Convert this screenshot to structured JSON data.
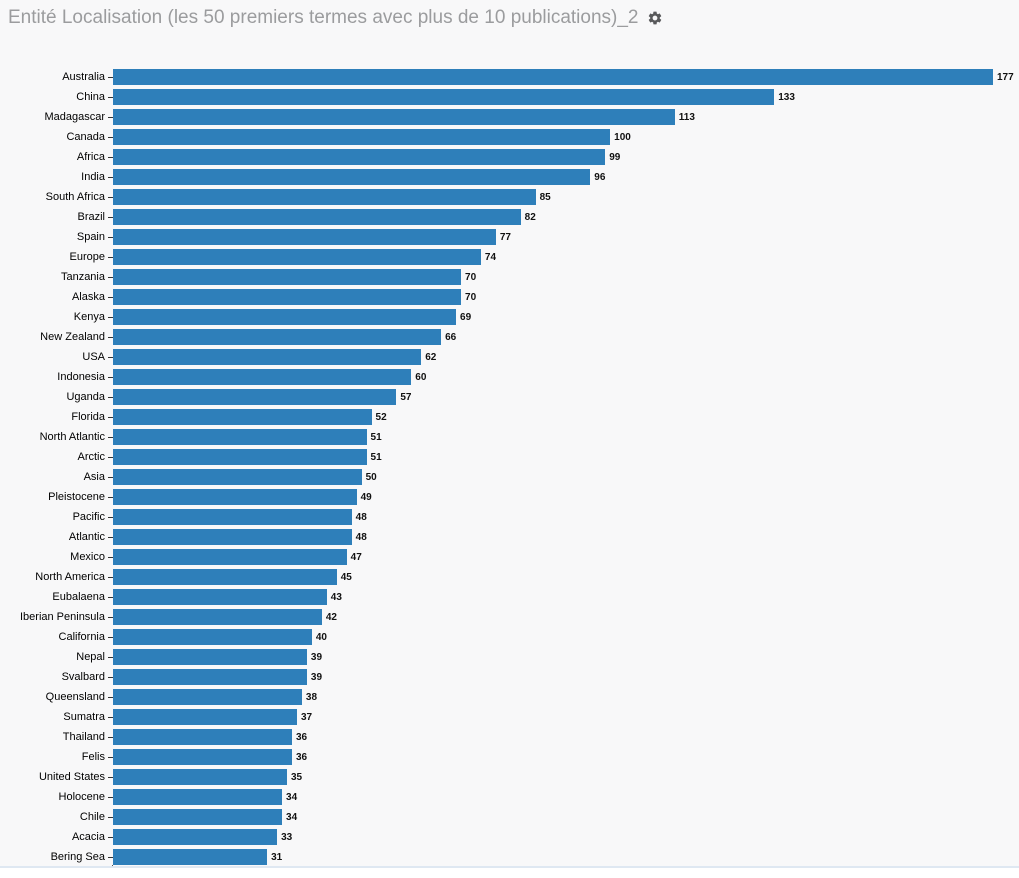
{
  "header": {
    "title": "Entité Localisation (les 50 premiers termes avec plus de 10 publications)_2",
    "gear_icon": "settings-gear"
  },
  "colors": {
    "bar": "#2e7fba",
    "panel_background": "#f8f8f9",
    "title_text": "#9b9c9e",
    "gear_icon": "#58595b",
    "value_label": "#111111",
    "category_label": "#000000",
    "bottom_divider": "#dfe8f2"
  },
  "chart_data": {
    "type": "bar",
    "orientation": "horizontal",
    "title": "Entité Localisation (les 50 premiers termes avec plus de 10 publications)_2",
    "xlabel": "",
    "ylabel": "",
    "xlim": [
      0,
      177
    ],
    "grid": false,
    "legend": false,
    "value_labels": true,
    "categories": [
      "Australia",
      "China",
      "Madagascar",
      "Canada",
      "Africa",
      "India",
      "South Africa",
      "Brazil",
      "Spain",
      "Europe",
      "Tanzania",
      "Alaska",
      "Kenya",
      "New Zealand",
      "USA",
      "Indonesia",
      "Uganda",
      "Florida",
      "North Atlantic",
      "Arctic",
      "Asia",
      "Pleistocene",
      "Pacific",
      "Atlantic",
      "Mexico",
      "North America",
      "Eubalaena",
      "Iberian Peninsula",
      "California",
      "Nepal",
      "Svalbard",
      "Queensland",
      "Sumatra",
      "Thailand",
      "Felis",
      "United States",
      "Holocene",
      "Chile",
      "Acacia",
      "Bering Sea"
    ],
    "values": [
      177,
      133,
      113,
      100,
      99,
      96,
      85,
      82,
      77,
      74,
      70,
      70,
      69,
      66,
      62,
      60,
      57,
      52,
      51,
      51,
      50,
      49,
      48,
      48,
      47,
      45,
      43,
      42,
      40,
      39,
      39,
      38,
      37,
      36,
      36,
      35,
      34,
      34,
      33,
      31
    ]
  }
}
